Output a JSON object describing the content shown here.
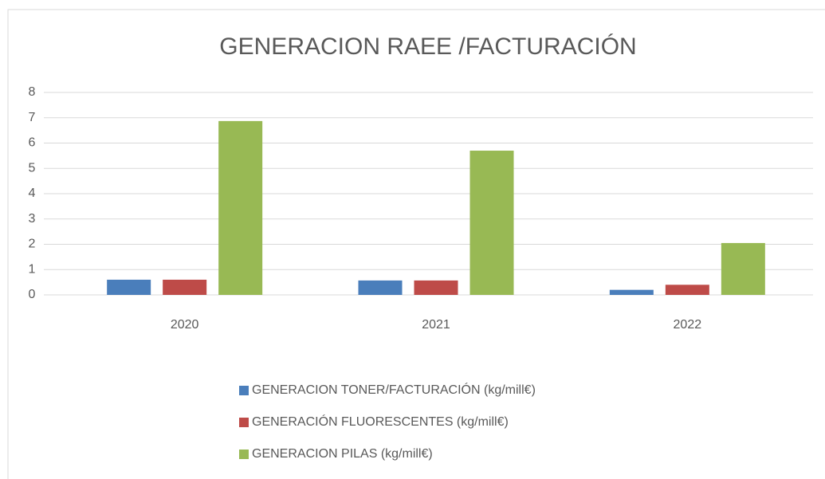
{
  "chart_data": {
    "type": "bar",
    "title": "GENERACION RAEE /FACTURACIÓN",
    "categories": [
      "2020",
      "2021",
      "2022"
    ],
    "series": [
      {
        "name": "GENERACION TONER/FACTURACIÓN (kg/mill€)",
        "color": "#4a7ebb",
        "values": [
          0.6,
          0.57,
          0.2
        ]
      },
      {
        "name": "GENERACIÓN FLUORESCENTES (kg/mill€)",
        "color": "#be4b48",
        "values": [
          0.6,
          0.57,
          0.4
        ]
      },
      {
        "name": "GENERACION PILAS (kg/mill€)",
        "color": "#98b954",
        "values": [
          6.87,
          5.7,
          2.05
        ]
      }
    ],
    "ylim": [
      0,
      8
    ],
    "yticks": [
      0,
      1,
      2,
      3,
      4,
      5,
      6,
      7,
      8
    ],
    "grid": true,
    "legend": "bottom"
  }
}
